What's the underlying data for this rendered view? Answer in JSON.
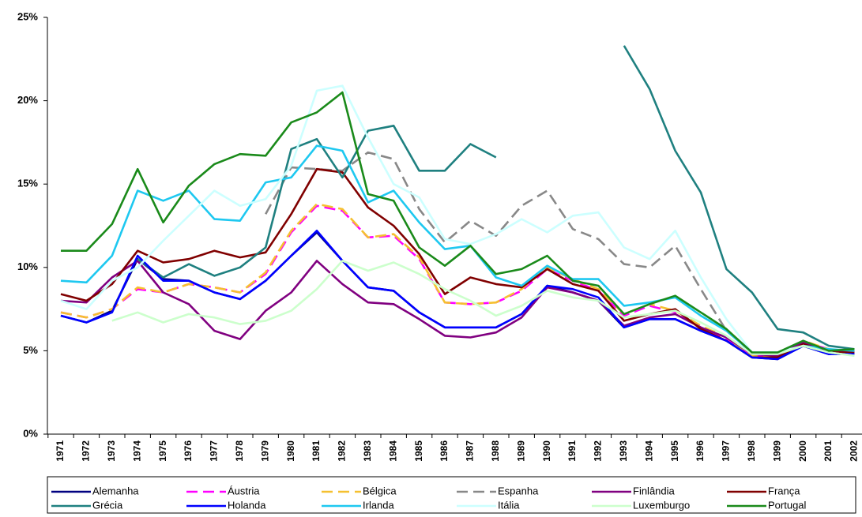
{
  "chart_data": {
    "type": "line",
    "categories": [
      "1971",
      "1972",
      "1973",
      "1974",
      "1975",
      "1976",
      "1977",
      "1978",
      "1979",
      "1980",
      "1981",
      "1982",
      "1983",
      "1984",
      "1985",
      "1986",
      "1987",
      "1988",
      "1989",
      "1990",
      "1991",
      "1992",
      "1993",
      "1994",
      "1995",
      "1996",
      "1997",
      "1998",
      "1999",
      "2000",
      "2001",
      "2002"
    ],
    "ylim": [
      0,
      25
    ],
    "yticks": [
      {
        "value": 0,
        "label": "0%"
      },
      {
        "value": 5,
        "label": "5%"
      },
      {
        "value": 10,
        "label": "10%"
      },
      {
        "value": 15,
        "label": "15%"
      },
      {
        "value": 20,
        "label": "20%"
      },
      {
        "value": 25,
        "label": "25%"
      }
    ],
    "grid": false,
    "legend": "bottom",
    "series": [
      {
        "name": "Alemanha",
        "color": "#000080",
        "dashed": false,
        "values": [
          7.1,
          6.7,
          7.4,
          10.5,
          9.3,
          9.2,
          8.5,
          8.1,
          9.2,
          10.7,
          12.1,
          10.4,
          8.8,
          8.6,
          7.3,
          6.4,
          6.4,
          6.4,
          7.2,
          8.9,
          8.5,
          8.0,
          6.4,
          6.9,
          6.9,
          6.2,
          5.6,
          4.6,
          4.5,
          5.3,
          4.8,
          4.8
        ]
      },
      {
        "name": "Áustria",
        "color": "#ff00ff",
        "dashed": true,
        "values": [
          7.3,
          7.0,
          7.5,
          8.7,
          8.5,
          9.0,
          8.8,
          8.5,
          9.6,
          12.1,
          13.7,
          13.4,
          11.8,
          11.9,
          10.5,
          7.9,
          7.8,
          7.9,
          8.6,
          9.9,
          9.2,
          8.6,
          7.1,
          7.7,
          7.3,
          6.4,
          5.7,
          4.7,
          4.7,
          5.5,
          5.1,
          4.9
        ]
      },
      {
        "name": "Bélgica",
        "color": "#f5c030",
        "dashed": true,
        "values": [
          7.3,
          7.0,
          7.5,
          8.8,
          8.5,
          9.0,
          8.8,
          8.5,
          9.7,
          12.2,
          13.8,
          13.5,
          11.8,
          12.0,
          10.6,
          7.9,
          7.8,
          7.9,
          8.7,
          10.0,
          9.3,
          8.7,
          7.2,
          7.8,
          7.4,
          6.5,
          5.8,
          4.7,
          4.7,
          5.6,
          5.1,
          4.9
        ]
      },
      {
        "name": "Espanha",
        "color": "#888888",
        "dashed": true,
        "values": [
          null,
          null,
          null,
          null,
          null,
          null,
          null,
          null,
          13.2,
          16.0,
          15.9,
          15.8,
          16.9,
          16.5,
          13.5,
          11.5,
          12.8,
          11.9,
          13.7,
          14.6,
          12.3,
          11.7,
          10.2,
          10.0,
          11.3,
          8.7,
          6.2,
          4.9,
          4.8,
          5.3,
          4.9,
          4.9
        ]
      },
      {
        "name": "Finlândia",
        "color": "#800080",
        "dashed": false,
        "values": [
          8.0,
          7.9,
          9.4,
          10.4,
          8.5,
          7.8,
          6.2,
          5.7,
          7.4,
          8.5,
          10.4,
          9.0,
          7.9,
          7.8,
          6.9,
          5.9,
          5.8,
          6.1,
          7.0,
          8.8,
          8.5,
          8.0,
          6.5,
          7.0,
          7.2,
          6.4,
          5.8,
          4.8,
          4.7,
          5.5,
          5.0,
          5.0
        ]
      },
      {
        "name": "França",
        "color": "#800000",
        "dashed": false,
        "values": [
          8.4,
          8.0,
          9.0,
          11.0,
          10.3,
          10.5,
          11.0,
          10.6,
          10.9,
          13.2,
          15.9,
          15.7,
          13.6,
          12.5,
          10.8,
          8.4,
          9.4,
          9.0,
          8.8,
          9.9,
          9.0,
          8.6,
          6.8,
          7.2,
          7.5,
          6.3,
          5.6,
          4.6,
          4.6,
          5.4,
          4.9,
          4.9
        ]
      },
      {
        "name": "Grécia",
        "color": "#1f8080",
        "dashed": false,
        "values": [
          null,
          null,
          null,
          10.5,
          9.4,
          10.2,
          9.5,
          10.0,
          11.2,
          17.1,
          17.7,
          15.4,
          18.2,
          18.5,
          15.8,
          15.8,
          17.4,
          16.6,
          null,
          null,
          null,
          null,
          23.3,
          20.7,
          17.0,
          14.5,
          9.9,
          8.5,
          6.3,
          6.1,
          5.3,
          5.1
        ]
      },
      {
        "name": "Holanda",
        "color": "#0000ff",
        "dashed": false,
        "values": [
          7.1,
          6.7,
          7.3,
          10.7,
          9.2,
          9.2,
          8.5,
          8.1,
          9.2,
          10.7,
          12.2,
          10.4,
          8.8,
          8.6,
          7.3,
          6.4,
          6.4,
          6.4,
          7.2,
          8.9,
          8.7,
          8.2,
          6.4,
          6.9,
          6.9,
          6.2,
          5.6,
          4.6,
          4.5,
          5.3,
          4.8,
          4.8
        ]
      },
      {
        "name": "Irlanda",
        "color": "#1ec8f0",
        "dashed": false,
        "values": [
          9.2,
          9.1,
          10.7,
          14.6,
          14.0,
          14.6,
          12.9,
          12.8,
          15.1,
          15.4,
          17.3,
          17.0,
          13.9,
          14.6,
          12.7,
          11.1,
          11.3,
          9.4,
          8.9,
          10.1,
          9.3,
          9.3,
          7.7,
          7.9,
          8.2,
          7.1,
          6.2,
          4.9,
          4.9,
          5.3,
          5.1,
          5.0
        ]
      },
      {
        "name": "Itália",
        "color": "#ccffff",
        "dashed": false,
        "values": [
          8.0,
          7.5,
          9.2,
          10.0,
          11.6,
          13.1,
          14.6,
          13.7,
          14.1,
          16.1,
          20.6,
          20.9,
          17.8,
          15.0,
          14.2,
          11.7,
          11.4,
          12.0,
          12.9,
          12.1,
          13.1,
          13.3,
          11.2,
          10.5,
          12.2,
          9.4,
          6.9,
          4.9,
          4.9,
          5.3,
          4.9,
          4.7
        ]
      },
      {
        "name": "Luxemburgo",
        "color": "#ccffcc",
        "dashed": false,
        "values": [
          null,
          null,
          6.8,
          7.3,
          6.7,
          7.2,
          7.0,
          6.6,
          6.8,
          7.4,
          8.7,
          10.4,
          9.8,
          10.3,
          9.6,
          8.7,
          8.0,
          7.1,
          7.7,
          8.6,
          8.2,
          8.0,
          7.0,
          7.2,
          7.4,
          6.7,
          5.9,
          4.8,
          4.8,
          5.3,
          4.9,
          4.7
        ]
      },
      {
        "name": "Portugal",
        "color": "#1a8a1a",
        "dashed": false,
        "values": [
          11.0,
          11.0,
          12.6,
          15.9,
          12.7,
          14.9,
          16.2,
          16.8,
          16.7,
          18.7,
          19.3,
          20.5,
          14.4,
          14.0,
          11.2,
          10.1,
          11.3,
          9.6,
          9.9,
          10.7,
          9.2,
          8.9,
          7.2,
          7.8,
          8.3,
          7.3,
          6.3,
          4.9,
          4.9,
          5.6,
          5.0,
          5.1
        ]
      }
    ]
  }
}
